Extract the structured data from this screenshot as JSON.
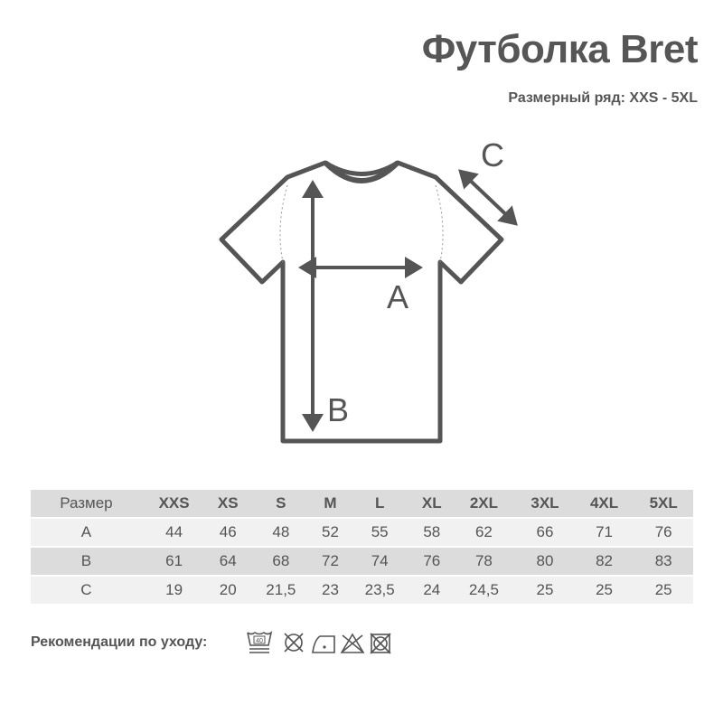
{
  "title": "Футболка Bret",
  "subtitle": "Размерный ряд: XXS - 5XL",
  "diagram": {
    "labels": {
      "a": "A",
      "b": "B",
      "c": "C"
    },
    "line_color": "#555555"
  },
  "table": {
    "header": [
      "Размер",
      "XXS",
      "XS",
      "S",
      "M",
      "L",
      "XL",
      "2XL",
      "3XL",
      "4XL",
      "5XL"
    ],
    "rows": [
      [
        "A",
        "44",
        "46",
        "48",
        "52",
        "55",
        "58",
        "62",
        "66",
        "71",
        "76"
      ],
      [
        "B",
        "61",
        "64",
        "68",
        "72",
        "74",
        "76",
        "78",
        "80",
        "82",
        "83"
      ],
      [
        "C",
        "19",
        "20",
        "21,5",
        "23",
        "23,5",
        "24",
        "24,5",
        "25",
        "25",
        "25"
      ]
    ]
  },
  "care": {
    "label": "Рекомендации по уходу:",
    "wash_temp": "40",
    "icons": [
      "wash-40-gentle-icon",
      "no-tumble-dry-icon",
      "iron-low-icon",
      "no-bleach-icon",
      "no-dry-clean-icon"
    ]
  }
}
